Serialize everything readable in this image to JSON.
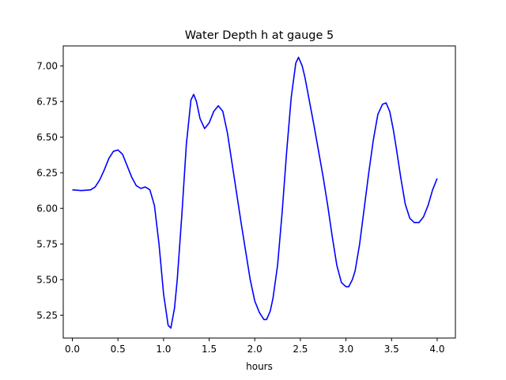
{
  "chart_data": {
    "type": "line",
    "title": "Water Depth h at gauge 5",
    "xlabel": "hours",
    "ylabel": "",
    "xlim": [
      -0.1,
      4.2
    ],
    "ylim": [
      5.09,
      7.14
    ],
    "xticks": [
      0.0,
      0.5,
      1.0,
      1.5,
      2.0,
      2.5,
      3.0,
      3.5,
      4.0
    ],
    "xtick_labels": [
      "0.0",
      "0.5",
      "1.0",
      "1.5",
      "2.0",
      "2.5",
      "3.0",
      "3.5",
      "4.0"
    ],
    "yticks": [
      5.25,
      5.5,
      5.75,
      6.0,
      6.25,
      6.5,
      6.75,
      7.0
    ],
    "ytick_labels": [
      "5.25",
      "5.50",
      "5.75",
      "6.00",
      "6.25",
      "6.50",
      "6.75",
      "7.00"
    ],
    "grid": false,
    "series": [
      {
        "color": "#0000ff",
        "x": [
          0.0,
          0.1,
          0.2,
          0.25,
          0.3,
          0.35,
          0.4,
          0.45,
          0.5,
          0.55,
          0.6,
          0.65,
          0.7,
          0.75,
          0.8,
          0.85,
          0.9,
          0.95,
          1.0,
          1.05,
          1.08,
          1.12,
          1.15,
          1.2,
          1.25,
          1.3,
          1.33,
          1.36,
          1.4,
          1.45,
          1.5,
          1.55,
          1.6,
          1.65,
          1.7,
          1.75,
          1.8,
          1.85,
          1.9,
          1.95,
          2.0,
          2.05,
          2.1,
          2.13,
          2.17,
          2.2,
          2.25,
          2.3,
          2.35,
          2.4,
          2.45,
          2.48,
          2.52,
          2.55,
          2.6,
          2.65,
          2.7,
          2.75,
          2.8,
          2.85,
          2.9,
          2.95,
          3.0,
          3.03,
          3.07,
          3.1,
          3.15,
          3.2,
          3.25,
          3.3,
          3.35,
          3.4,
          3.44,
          3.48,
          3.52,
          3.55,
          3.6,
          3.65,
          3.7,
          3.75,
          3.8,
          3.85,
          3.9,
          3.95,
          4.0
        ],
        "y": [
          6.13,
          6.125,
          6.13,
          6.15,
          6.2,
          6.27,
          6.35,
          6.4,
          6.41,
          6.38,
          6.3,
          6.22,
          6.16,
          6.14,
          6.15,
          6.13,
          6.02,
          5.75,
          5.4,
          5.18,
          5.16,
          5.3,
          5.5,
          5.95,
          6.45,
          6.76,
          6.8,
          6.75,
          6.63,
          6.56,
          6.6,
          6.68,
          6.72,
          6.68,
          6.53,
          6.32,
          6.11,
          5.9,
          5.7,
          5.5,
          5.35,
          5.27,
          5.22,
          5.22,
          5.28,
          5.37,
          5.6,
          5.97,
          6.4,
          6.78,
          7.02,
          7.06,
          7.0,
          6.92,
          6.75,
          6.58,
          6.4,
          6.22,
          6.02,
          5.8,
          5.6,
          5.48,
          5.45,
          5.45,
          5.5,
          5.56,
          5.75,
          6.0,
          6.25,
          6.48,
          6.66,
          6.73,
          6.74,
          6.68,
          6.55,
          6.43,
          6.22,
          6.03,
          5.93,
          5.9,
          5.9,
          5.94,
          6.02,
          6.13,
          6.21
        ]
      }
    ]
  }
}
